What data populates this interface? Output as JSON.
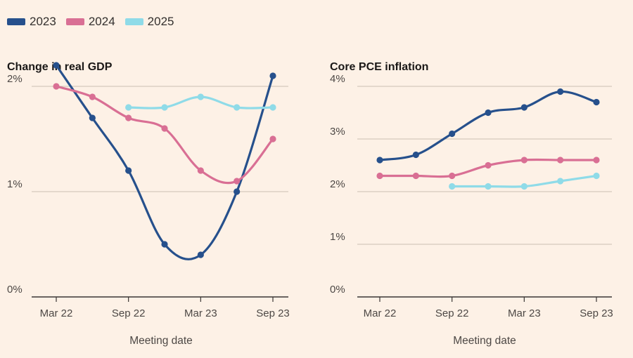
{
  "legend": [
    {
      "label": "2023",
      "color": "#26508c"
    },
    {
      "label": "2024",
      "color": "#d96f94"
    },
    {
      "label": "2025",
      "color": "#8fdbe8"
    }
  ],
  "chart_data": [
    {
      "type": "line",
      "title": "Change in real GDP",
      "xlabel": "Meeting date",
      "ylabel": "",
      "x_ticks": [
        "Mar 22",
        "Sep 22",
        "Mar 23",
        "Sep 23"
      ],
      "x_tick_index": [
        0,
        2,
        4,
        6
      ],
      "ylim": [
        0,
        2.2
      ],
      "y_ticks": [
        0,
        1,
        2
      ],
      "y_tick_labels": [
        "0%",
        "1%",
        "2%"
      ],
      "grid": true,
      "series": [
        {
          "name": "2023",
          "color": "#26508c",
          "values": [
            2.2,
            1.7,
            1.2,
            0.5,
            0.4,
            1.0,
            2.1
          ]
        },
        {
          "name": "2024",
          "color": "#d96f94",
          "values": [
            2.0,
            1.9,
            1.7,
            1.6,
            1.2,
            1.1,
            1.5
          ]
        },
        {
          "name": "2025",
          "color": "#8fdbe8",
          "values": [
            null,
            null,
            1.8,
            1.8,
            1.9,
            1.8,
            1.8
          ]
        }
      ]
    },
    {
      "type": "line",
      "title": "Core PCE inflation",
      "xlabel": "Meeting date",
      "ylabel": "",
      "x_ticks": [
        "Mar 22",
        "Sep 22",
        "Mar 23",
        "Sep 23"
      ],
      "x_tick_index": [
        0,
        2,
        4,
        6
      ],
      "ylim": [
        0,
        4.0
      ],
      "y_ticks": [
        0,
        1,
        2,
        3,
        4
      ],
      "y_tick_labels": [
        "0%",
        "1%",
        "2%",
        "3%",
        "4%"
      ],
      "grid": true,
      "series": [
        {
          "name": "2023",
          "color": "#26508c",
          "values": [
            2.6,
            2.7,
            3.1,
            3.5,
            3.6,
            3.9,
            3.7
          ]
        },
        {
          "name": "2024",
          "color": "#d96f94",
          "values": [
            2.3,
            2.3,
            2.3,
            2.5,
            2.6,
            2.6,
            2.6
          ]
        },
        {
          "name": "2025",
          "color": "#8fdbe8",
          "values": [
            null,
            null,
            2.1,
            2.1,
            2.1,
            2.2,
            2.3
          ]
        }
      ]
    }
  ]
}
